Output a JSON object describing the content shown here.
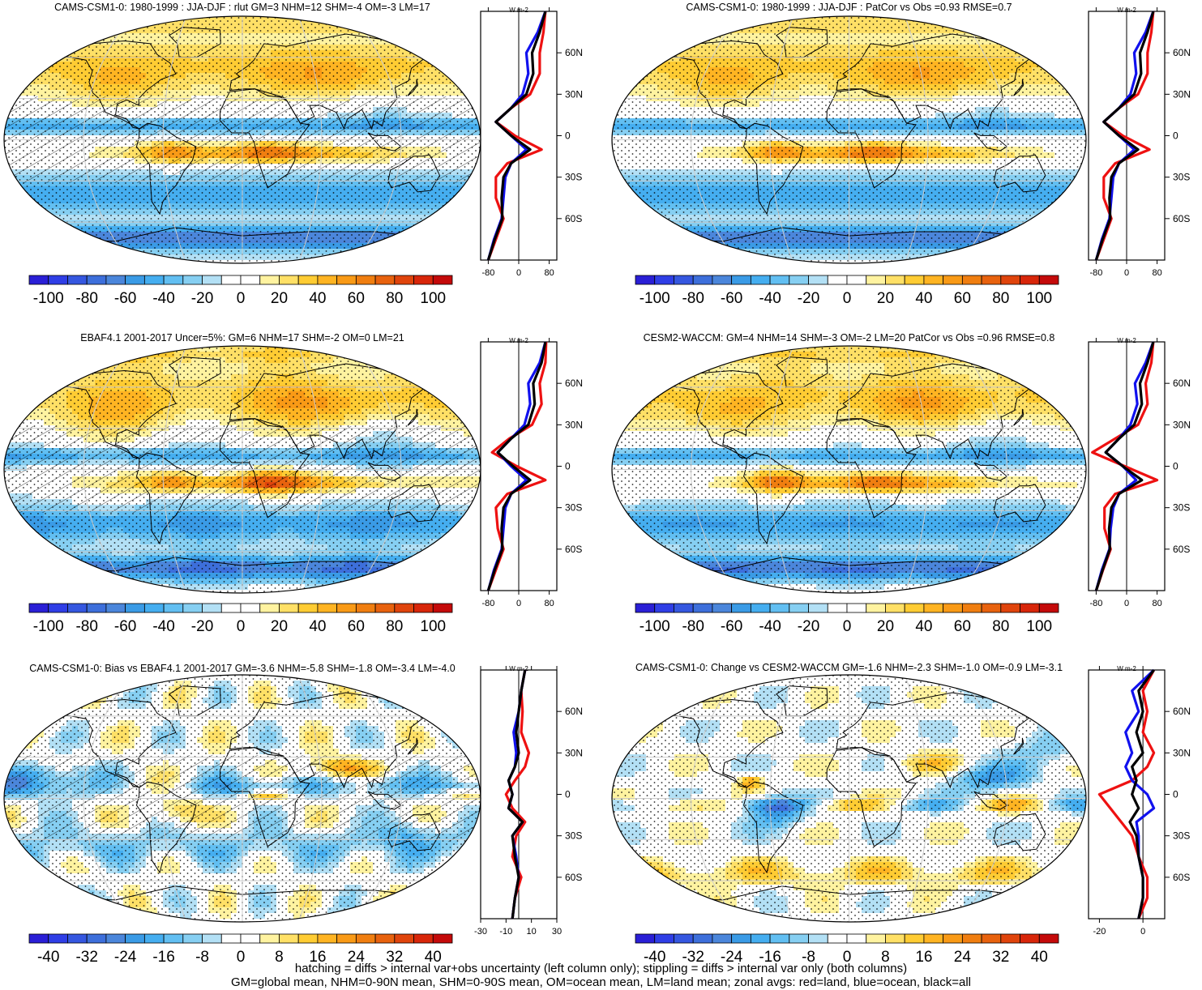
{
  "panels": [
    {
      "title": "CAMS-CSM1-0: 1980-1999 : JJA-DJF : rlut GM=3 NHM=12 SHM=-4 OM=-3 LM=17",
      "colorbar": {
        "labels": [
          "-100",
          "-80",
          "-60",
          "-40",
          "-20",
          "0",
          "20",
          "40",
          "60",
          "80",
          "100"
        ],
        "min": -110,
        "max": 110
      },
      "hatching": true,
      "zonal": {
        "unit_label": "W m-2",
        "xmin": -100,
        "xmax": 100,
        "xticks": [
          "-80",
          "0",
          "80"
        ],
        "red": [
          [
            -90,
            -80
          ],
          [
            -75,
            -60
          ],
          [
            -60,
            -40
          ],
          [
            -45,
            -60
          ],
          [
            -30,
            -60
          ],
          [
            -20,
            -30
          ],
          [
            -10,
            60
          ],
          [
            0,
            -10
          ],
          [
            10,
            -60
          ],
          [
            20,
            -20
          ],
          [
            30,
            30
          ],
          [
            45,
            55
          ],
          [
            60,
            55
          ],
          [
            75,
            65
          ],
          [
            90,
            70
          ]
        ],
        "blue": [
          [
            -90,
            -80
          ],
          [
            -75,
            -65
          ],
          [
            -60,
            -45
          ],
          [
            -45,
            -40
          ],
          [
            -30,
            -35
          ],
          [
            -20,
            -20
          ],
          [
            -10,
            20
          ],
          [
            0,
            -20
          ],
          [
            10,
            -60
          ],
          [
            20,
            -20
          ],
          [
            30,
            10
          ],
          [
            45,
            25
          ],
          [
            60,
            20
          ],
          [
            75,
            50
          ],
          [
            90,
            70
          ]
        ],
        "black": [
          [
            -90,
            -80
          ],
          [
            -75,
            -63
          ],
          [
            -60,
            -43
          ],
          [
            -45,
            -45
          ],
          [
            -30,
            -40
          ],
          [
            -20,
            -20
          ],
          [
            -10,
            30
          ],
          [
            0,
            -20
          ],
          [
            10,
            -60
          ],
          [
            20,
            -20
          ],
          [
            30,
            20
          ],
          [
            45,
            38
          ],
          [
            60,
            35
          ],
          [
            75,
            55
          ],
          [
            90,
            70
          ]
        ]
      }
    },
    {
      "title": "CAMS-CSM1-0: 1980-1999 : JJA-DJF : PatCor vs Obs =0.93 RMSE=0.7",
      "colorbar": {
        "labels": [
          "-100",
          "-80",
          "-60",
          "-40",
          "-20",
          "0",
          "20",
          "40",
          "60",
          "80",
          "100"
        ],
        "min": -110,
        "max": 110
      },
      "hatching": false,
      "zonal": {
        "unit_label": "W m-2",
        "xmin": -100,
        "xmax": 100,
        "xticks": [
          "-80",
          "0",
          "80"
        ],
        "red": [
          [
            -90,
            -80
          ],
          [
            -75,
            -60
          ],
          [
            -60,
            -40
          ],
          [
            -45,
            -60
          ],
          [
            -30,
            -60
          ],
          [
            -20,
            -30
          ],
          [
            -10,
            60
          ],
          [
            0,
            -10
          ],
          [
            10,
            -60
          ],
          [
            20,
            -20
          ],
          [
            30,
            30
          ],
          [
            45,
            55
          ],
          [
            60,
            55
          ],
          [
            75,
            65
          ],
          [
            90,
            70
          ]
        ],
        "blue": [
          [
            -90,
            -80
          ],
          [
            -75,
            -65
          ],
          [
            -60,
            -45
          ],
          [
            -45,
            -40
          ],
          [
            -30,
            -35
          ],
          [
            -20,
            -20
          ],
          [
            -10,
            20
          ],
          [
            0,
            -20
          ],
          [
            10,
            -60
          ],
          [
            20,
            -20
          ],
          [
            30,
            10
          ],
          [
            45,
            25
          ],
          [
            60,
            20
          ],
          [
            75,
            50
          ],
          [
            90,
            70
          ]
        ],
        "black": [
          [
            -90,
            -80
          ],
          [
            -75,
            -63
          ],
          [
            -60,
            -43
          ],
          [
            -45,
            -45
          ],
          [
            -30,
            -40
          ],
          [
            -20,
            -20
          ],
          [
            -10,
            30
          ],
          [
            0,
            -20
          ],
          [
            10,
            -60
          ],
          [
            20,
            -20
          ],
          [
            30,
            20
          ],
          [
            45,
            38
          ],
          [
            60,
            35
          ],
          [
            75,
            55
          ],
          [
            90,
            70
          ]
        ]
      }
    },
    {
      "title": "EBAF4.1 2001-2017 Uncer=5%: GM=6 NHM=17 SHM=-2 OM=0 LM=21",
      "colorbar": {
        "labels": [
          "-100",
          "-80",
          "-60",
          "-40",
          "-20",
          "0",
          "20",
          "40",
          "60",
          "80",
          "100"
        ],
        "min": -110,
        "max": 110
      },
      "hatching": true,
      "zonal": {
        "unit_label": "W m-2",
        "xmin": -100,
        "xmax": 100,
        "xticks": [
          "-80",
          "0",
          "80"
        ],
        "red": [
          [
            -90,
            -80
          ],
          [
            -75,
            -60
          ],
          [
            -60,
            -40
          ],
          [
            -45,
            -55
          ],
          [
            -30,
            -60
          ],
          [
            -20,
            -30
          ],
          [
            -10,
            70
          ],
          [
            0,
            -5
          ],
          [
            10,
            -70
          ],
          [
            20,
            -25
          ],
          [
            30,
            35
          ],
          [
            45,
            60
          ],
          [
            60,
            55
          ],
          [
            75,
            70
          ],
          [
            90,
            72
          ]
        ],
        "blue": [
          [
            -90,
            -80
          ],
          [
            -75,
            -65
          ],
          [
            -60,
            -45
          ],
          [
            -45,
            -40
          ],
          [
            -30,
            -35
          ],
          [
            -20,
            -20
          ],
          [
            -10,
            20
          ],
          [
            0,
            -20
          ],
          [
            10,
            -55
          ],
          [
            20,
            -20
          ],
          [
            30,
            15
          ],
          [
            45,
            30
          ],
          [
            60,
            25
          ],
          [
            75,
            55
          ],
          [
            90,
            70
          ]
        ],
        "black": [
          [
            -90,
            -80
          ],
          [
            -75,
            -63
          ],
          [
            -60,
            -43
          ],
          [
            -45,
            -45
          ],
          [
            -30,
            -40
          ],
          [
            -20,
            -20
          ],
          [
            -10,
            30
          ],
          [
            0,
            -15
          ],
          [
            10,
            -55
          ],
          [
            20,
            -20
          ],
          [
            30,
            25
          ],
          [
            45,
            42
          ],
          [
            60,
            38
          ],
          [
            75,
            60
          ],
          [
            90,
            70
          ]
        ]
      }
    },
    {
      "title": "CESM2-WACCM: GM=4 NHM=14 SHM=-3 OM=-2 LM=20 PatCor vs Obs =0.96 RMSE=0.8",
      "colorbar": {
        "labels": [
          "-100",
          "-80",
          "-60",
          "-40",
          "-20",
          "0",
          "20",
          "40",
          "60",
          "80",
          "100"
        ],
        "min": -110,
        "max": 110
      },
      "hatching": false,
      "zonal": {
        "unit_label": "W m-2",
        "xmin": -100,
        "xmax": 100,
        "xticks": [
          "-80",
          "0",
          "80"
        ],
        "red": [
          [
            -90,
            -80
          ],
          [
            -75,
            -62
          ],
          [
            -60,
            -42
          ],
          [
            -45,
            -58
          ],
          [
            -30,
            -58
          ],
          [
            -20,
            -30
          ],
          [
            -10,
            80
          ],
          [
            0,
            -5
          ],
          [
            10,
            -90
          ],
          [
            20,
            -30
          ],
          [
            30,
            30
          ],
          [
            45,
            55
          ],
          [
            60,
            50
          ],
          [
            75,
            65
          ],
          [
            90,
            70
          ]
        ],
        "blue": [
          [
            -90,
            -80
          ],
          [
            -75,
            -65
          ],
          [
            -60,
            -45
          ],
          [
            -45,
            -42
          ],
          [
            -30,
            -35
          ],
          [
            -20,
            -20
          ],
          [
            -10,
            25
          ],
          [
            0,
            -10
          ],
          [
            10,
            -55
          ],
          [
            20,
            -20
          ],
          [
            30,
            10
          ],
          [
            45,
            28
          ],
          [
            60,
            22
          ],
          [
            75,
            50
          ],
          [
            90,
            70
          ]
        ],
        "black": [
          [
            -90,
            -80
          ],
          [
            -75,
            -63
          ],
          [
            -60,
            -44
          ],
          [
            -45,
            -46
          ],
          [
            -30,
            -40
          ],
          [
            -20,
            -20
          ],
          [
            -10,
            40
          ],
          [
            0,
            -10
          ],
          [
            10,
            -55
          ],
          [
            20,
            -20
          ],
          [
            30,
            20
          ],
          [
            45,
            40
          ],
          [
            60,
            35
          ],
          [
            75,
            55
          ],
          [
            90,
            70
          ]
        ]
      }
    },
    {
      "title": "CAMS-CSM1-0: Bias vs EBAF4.1 2001-2017 GM=-3.6 NHM=-5.8 SHM=-1.8 OM=-3.4 LM=-4.0",
      "colorbar": {
        "labels": [
          "-40",
          "-32",
          "-24",
          "-16",
          "-8",
          "0",
          "8",
          "16",
          "24",
          "32",
          "40"
        ],
        "min": -44,
        "max": 44
      },
      "hatching": true,
      "zonal": {
        "unit_label": "W m-2",
        "xmin": -30,
        "xmax": 30,
        "xticks": [
          "-30",
          "-10",
          "10",
          "30"
        ],
        "red": [
          [
            -90,
            -5
          ],
          [
            -75,
            -3
          ],
          [
            -60,
            2
          ],
          [
            -45,
            -5
          ],
          [
            -30,
            -2
          ],
          [
            -20,
            5
          ],
          [
            -10,
            -5
          ],
          [
            0,
            -10
          ],
          [
            10,
            -3
          ],
          [
            20,
            5
          ],
          [
            30,
            8
          ],
          [
            45,
            2
          ],
          [
            60,
            3
          ],
          [
            75,
            2
          ],
          [
            90,
            5
          ]
        ],
        "blue": [
          [
            -90,
            -5
          ],
          [
            -75,
            -3
          ],
          [
            -60,
            0
          ],
          [
            -45,
            -2
          ],
          [
            -30,
            -5
          ],
          [
            -20,
            3
          ],
          [
            -10,
            -8
          ],
          [
            0,
            -5
          ],
          [
            10,
            -8
          ],
          [
            20,
            -3
          ],
          [
            30,
            -2
          ],
          [
            45,
            -4
          ],
          [
            60,
            0
          ],
          [
            75,
            2
          ],
          [
            90,
            5
          ]
        ],
        "black": [
          [
            -90,
            -5
          ],
          [
            -75,
            -3
          ],
          [
            -60,
            0
          ],
          [
            -45,
            -3
          ],
          [
            -30,
            -5
          ],
          [
            -20,
            3
          ],
          [
            -10,
            -8
          ],
          [
            0,
            -5
          ],
          [
            10,
            -8
          ],
          [
            20,
            -3
          ],
          [
            30,
            0
          ],
          [
            45,
            -2
          ],
          [
            60,
            0
          ],
          [
            75,
            2
          ],
          [
            90,
            5
          ]
        ]
      }
    },
    {
      "title": "CAMS-CSM1-0: Change vs CESM2-WACCM GM=-1.6 NHM=-2.3 SHM=-1.0 OM=-0.9 LM=-3.1",
      "colorbar": {
        "labels": [
          "-40",
          "-32",
          "-24",
          "-16",
          "-8",
          "0",
          "8",
          "16",
          "24",
          "32",
          "40"
        ],
        "min": -44,
        "max": 44
      },
      "hatching": false,
      "zonal": {
        "unit_label": "W m-2",
        "xmin": -25,
        "xmax": 10,
        "xticks": [
          "-20",
          "0"
        ],
        "red": [
          [
            -90,
            -2
          ],
          [
            -75,
            2
          ],
          [
            -60,
            2
          ],
          [
            -45,
            -2
          ],
          [
            -30,
            -5
          ],
          [
            -20,
            -10
          ],
          [
            -10,
            -15
          ],
          [
            0,
            -20
          ],
          [
            10,
            -5
          ],
          [
            20,
            2
          ],
          [
            30,
            5
          ],
          [
            45,
            0
          ],
          [
            60,
            2
          ],
          [
            75,
            0
          ],
          [
            90,
            5
          ]
        ],
        "blue": [
          [
            -90,
            -2
          ],
          [
            -75,
            0
          ],
          [
            -60,
            0
          ],
          [
            -45,
            -2
          ],
          [
            -30,
            -2
          ],
          [
            -20,
            -3
          ],
          [
            -10,
            5
          ],
          [
            0,
            2
          ],
          [
            10,
            -5
          ],
          [
            20,
            -8
          ],
          [
            30,
            -5
          ],
          [
            45,
            -8
          ],
          [
            60,
            -2
          ],
          [
            75,
            -5
          ],
          [
            90,
            5
          ]
        ],
        "black": [
          [
            -90,
            -2
          ],
          [
            -75,
            0
          ],
          [
            -60,
            0
          ],
          [
            -45,
            -2
          ],
          [
            -30,
            -3
          ],
          [
            -20,
            -6
          ],
          [
            -10,
            -2
          ],
          [
            0,
            -5
          ],
          [
            10,
            -3
          ],
          [
            20,
            -5
          ],
          [
            30,
            0
          ],
          [
            45,
            -3
          ],
          [
            60,
            0
          ],
          [
            75,
            -2
          ],
          [
            90,
            5
          ]
        ]
      }
    }
  ],
  "lat_ticks": [
    "60N",
    "30N",
    "0",
    "30S",
    "60S"
  ],
  "footer": {
    "line1": "hatching = diffs > internal var+obs uncertainty (left column only); stippling = diffs > internal var only (both columns)",
    "line2": "GM=global mean, NHM=0-90N mean, SHM=0-90S mean, OM=ocean mean, LM=land mean; zonal avgs: red=land, blue=ocean, black=all"
  },
  "colors": {
    "land": "#ee1111",
    "ocean": "#1111ee",
    "all": "#000000"
  }
}
